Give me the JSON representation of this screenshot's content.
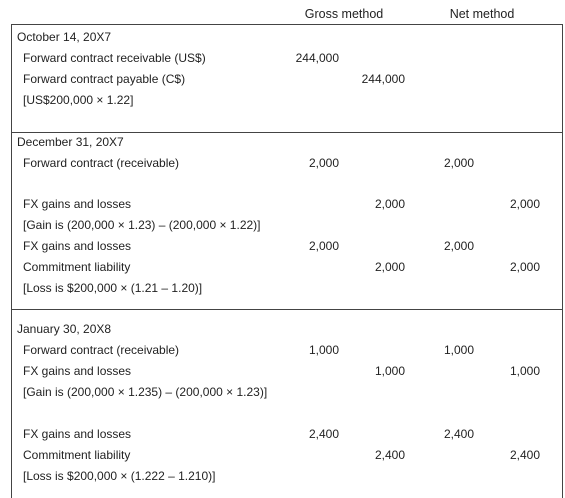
{
  "header": {
    "gross_method": "Gross method",
    "net_method": "Net method"
  },
  "sections": [
    {
      "date": "October 14, 20X7",
      "rows": [
        {
          "desc": "Forward contract receivable (US$)",
          "gross_dr": "244,000",
          "gross_cr": "",
          "net_dr": "",
          "net_cr": ""
        },
        {
          "desc": "Forward contract payable (C$)",
          "gross_dr": "",
          "gross_cr": "244,000",
          "net_dr": "",
          "net_cr": ""
        },
        {
          "desc": "[US$200,000 × 1.22]",
          "gross_dr": "",
          "gross_cr": "",
          "net_dr": "",
          "net_cr": ""
        }
      ]
    },
    {
      "date": "December 31, 20X7",
      "rows": [
        {
          "desc": "Forward contract (receivable)",
          "gross_dr": "2,000",
          "gross_cr": "",
          "net_dr": "2,000",
          "net_cr": ""
        },
        {
          "desc": "FX gains and losses",
          "gross_dr": "",
          "gross_cr": "2,000",
          "net_dr": "",
          "net_cr": "2,000"
        },
        {
          "desc": "[Gain is (200,000 × 1.23) – (200,000 × 1.22)]",
          "gross_dr": "",
          "gross_cr": "",
          "net_dr": "",
          "net_cr": ""
        },
        {
          "desc": "FX gains and losses",
          "gross_dr": "2,000",
          "gross_cr": "",
          "net_dr": "2,000",
          "net_cr": ""
        },
        {
          "desc": "Commitment liability",
          "gross_dr": "",
          "gross_cr": "2,000",
          "net_dr": "",
          "net_cr": "2,000"
        },
        {
          "desc": "[Loss is $200,000 × (1.21 – 1.20)]",
          "gross_dr": "",
          "gross_cr": "",
          "net_dr": "",
          "net_cr": ""
        }
      ]
    },
    {
      "date": "January 30, 20X8",
      "rows": [
        {
          "desc": "Forward contract (receivable)",
          "gross_dr": "1,000",
          "gross_cr": "",
          "net_dr": "1,000",
          "net_cr": ""
        },
        {
          "desc": "FX gains and losses",
          "gross_dr": "",
          "gross_cr": "1,000",
          "net_dr": "",
          "net_cr": "1,000"
        },
        {
          "desc": "[Gain is (200,000 × 1.235) – (200,000 × 1.23)]",
          "gross_dr": "",
          "gross_cr": "",
          "net_dr": "",
          "net_cr": ""
        },
        {
          "desc": "FX gains and losses",
          "gross_dr": "2,400",
          "gross_cr": "",
          "net_dr": "2,400",
          "net_cr": ""
        },
        {
          "desc": "Commitment liability",
          "gross_dr": "",
          "gross_cr": "2,400",
          "net_dr": "",
          "net_cr": "2,400"
        },
        {
          "desc": "[Loss is $200,000 × (1.222 – 1.210)]",
          "gross_dr": "",
          "gross_cr": "",
          "net_dr": "",
          "net_cr": ""
        }
      ]
    }
  ]
}
